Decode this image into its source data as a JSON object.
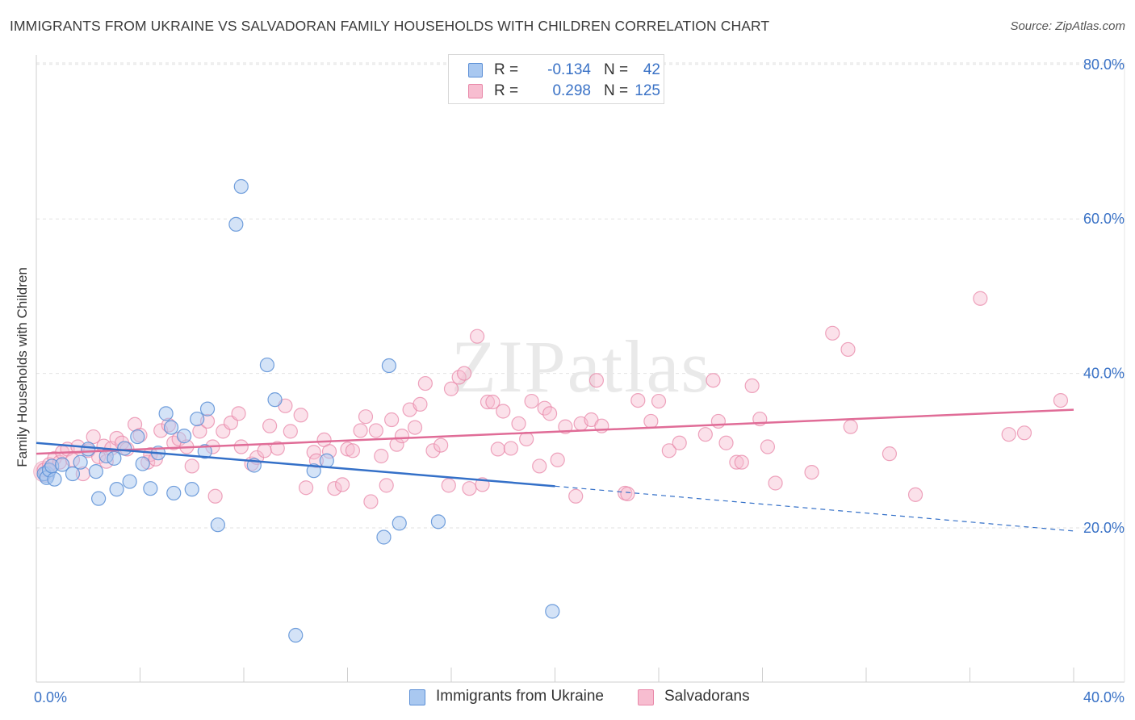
{
  "header": {
    "title": "IMMIGRANTS FROM UKRAINE VS SALVADORAN FAMILY HOUSEHOLDS WITH CHILDREN CORRELATION CHART",
    "source": "Source: ZipAtlas.com"
  },
  "watermark": "ZIPatlas",
  "legend": {
    "series1": {
      "r_label": "R =",
      "r_value": "-0.134",
      "n_label": "N =",
      "n_value": "42"
    },
    "series2": {
      "r_label": "R =",
      "r_value": "0.298",
      "n_label": "N =",
      "n_value": "125"
    }
  },
  "bottom_legend": {
    "series1": "Immigrants from Ukraine",
    "series2": "Salvadorans"
  },
  "colors": {
    "blue_fill": "#a9c8f0",
    "blue_stroke": "#5b8fd6",
    "blue_line": "#3470c8",
    "pink_fill": "#f7bdd0",
    "pink_stroke": "#e887a8",
    "pink_line": "#e06c97",
    "axis_text": "#3a72c6",
    "grid": "#e2e2e2"
  },
  "chart_data": {
    "type": "scatter",
    "title": "IMMIGRANTS FROM UKRAINE VS SALVADORAN FAMILY HOUSEHOLDS WITH CHILDREN CORRELATION CHART",
    "xlabel": "",
    "ylabel": "Family Households with Children",
    "xlim": [
      0,
      40
    ],
    "ylim": [
      0,
      80
    ],
    "x_tick_labels": [
      "0.0%",
      "40.0%"
    ],
    "y_tick_labels": [
      "20.0%",
      "40.0%",
      "60.0%",
      "80.0%"
    ],
    "y_ticks": [
      20,
      40,
      60,
      80
    ],
    "series": [
      {
        "name": "Immigrants from Ukraine",
        "r": -0.134,
        "n": 42,
        "trend": {
          "x_start": 0,
          "y_start": 31.0,
          "x_end": 20,
          "y_end": 25.4,
          "dashed_to_x": 40,
          "dashed_to_y": 19.6
        },
        "points": [
          [
            0.3,
            27.0
          ],
          [
            0.4,
            26.5
          ],
          [
            0.5,
            27.5
          ],
          [
            0.6,
            28.0
          ],
          [
            0.7,
            26.3
          ],
          [
            1.0,
            28.2
          ],
          [
            1.4,
            27.0
          ],
          [
            1.7,
            28.5
          ],
          [
            2.0,
            30.2
          ],
          [
            2.3,
            27.3
          ],
          [
            2.4,
            23.8
          ],
          [
            2.7,
            29.3
          ],
          [
            3.0,
            29.0
          ],
          [
            3.1,
            25.0
          ],
          [
            3.4,
            30.3
          ],
          [
            3.6,
            26.0
          ],
          [
            3.9,
            31.8
          ],
          [
            4.1,
            28.3
          ],
          [
            4.4,
            25.1
          ],
          [
            4.7,
            29.7
          ],
          [
            5.0,
            34.8
          ],
          [
            5.2,
            33.0
          ],
          [
            5.3,
            24.5
          ],
          [
            5.7,
            31.9
          ],
          [
            6.0,
            25.0
          ],
          [
            6.2,
            34.1
          ],
          [
            6.5,
            29.9
          ],
          [
            6.6,
            35.4
          ],
          [
            7.0,
            20.4
          ],
          [
            7.7,
            59.3
          ],
          [
            7.9,
            64.2
          ],
          [
            8.4,
            28.1
          ],
          [
            8.9,
            41.1
          ],
          [
            9.2,
            36.6
          ],
          [
            10.0,
            6.1
          ],
          [
            10.7,
            27.4
          ],
          [
            11.2,
            28.7
          ],
          [
            13.4,
            18.8
          ],
          [
            13.6,
            41.0
          ],
          [
            14.0,
            20.6
          ],
          [
            15.5,
            20.8
          ],
          [
            19.9,
            9.2
          ]
        ]
      },
      {
        "name": "Salvadorans",
        "r": 0.298,
        "n": 125,
        "trend": {
          "x_start": 0,
          "y_start": 29.6,
          "x_end": 40,
          "y_end": 35.3
        },
        "points": [
          [
            0.3,
            27.5
          ],
          [
            0.5,
            28.2
          ],
          [
            0.7,
            29.0
          ],
          [
            0.9,
            28.5
          ],
          [
            1.0,
            29.8
          ],
          [
            1.2,
            30.2
          ],
          [
            1.4,
            28.8
          ],
          [
            1.6,
            30.5
          ],
          [
            1.8,
            27.0
          ],
          [
            2.0,
            30.0
          ],
          [
            2.2,
            31.8
          ],
          [
            2.4,
            29.2
          ],
          [
            2.6,
            30.6
          ],
          [
            2.7,
            28.6
          ],
          [
            2.9,
            30.3
          ],
          [
            3.1,
            31.6
          ],
          [
            3.3,
            31.0
          ],
          [
            3.5,
            30.2
          ],
          [
            3.8,
            33.4
          ],
          [
            4.0,
            32.0
          ],
          [
            4.3,
            28.5
          ],
          [
            4.4,
            29.5
          ],
          [
            4.6,
            28.9
          ],
          [
            4.8,
            32.6
          ],
          [
            5.1,
            33.3
          ],
          [
            5.3,
            31.0
          ],
          [
            5.5,
            31.5
          ],
          [
            5.8,
            30.5
          ],
          [
            6.0,
            28.0
          ],
          [
            6.3,
            32.5
          ],
          [
            6.6,
            33.8
          ],
          [
            6.8,
            30.5
          ],
          [
            6.9,
            24.1
          ],
          [
            7.2,
            32.5
          ],
          [
            7.5,
            33.6
          ],
          [
            7.8,
            34.8
          ],
          [
            7.9,
            30.5
          ],
          [
            8.3,
            28.3
          ],
          [
            8.5,
            29.1
          ],
          [
            8.8,
            30.0
          ],
          [
            9.0,
            33.2
          ],
          [
            9.3,
            30.3
          ],
          [
            9.6,
            35.8
          ],
          [
            9.8,
            32.5
          ],
          [
            10.2,
            34.6
          ],
          [
            10.4,
            25.2
          ],
          [
            10.7,
            29.8
          ],
          [
            10.8,
            28.7
          ],
          [
            11.1,
            31.4
          ],
          [
            11.3,
            29.9
          ],
          [
            11.5,
            25.1
          ],
          [
            11.8,
            25.6
          ],
          [
            12.0,
            30.2
          ],
          [
            12.2,
            30.0
          ],
          [
            12.5,
            32.6
          ],
          [
            12.7,
            34.4
          ],
          [
            12.9,
            23.4
          ],
          [
            13.1,
            32.6
          ],
          [
            13.3,
            29.3
          ],
          [
            13.5,
            25.5
          ],
          [
            13.7,
            34.0
          ],
          [
            13.9,
            30.8
          ],
          [
            14.1,
            31.9
          ],
          [
            14.4,
            35.3
          ],
          [
            14.6,
            33.0
          ],
          [
            14.8,
            36.0
          ],
          [
            15.0,
            38.7
          ],
          [
            15.3,
            30.0
          ],
          [
            15.6,
            30.7
          ],
          [
            15.9,
            25.5
          ],
          [
            16.0,
            38.0
          ],
          [
            16.3,
            39.5
          ],
          [
            16.5,
            40.0
          ],
          [
            16.7,
            25.1
          ],
          [
            17.0,
            44.8
          ],
          [
            17.2,
            25.6
          ],
          [
            17.4,
            36.3
          ],
          [
            17.6,
            36.3
          ],
          [
            17.8,
            30.2
          ],
          [
            18.0,
            35.1
          ],
          [
            18.3,
            30.3
          ],
          [
            18.6,
            33.5
          ],
          [
            18.9,
            31.5
          ],
          [
            19.1,
            36.4
          ],
          [
            19.4,
            28.0
          ],
          [
            19.6,
            35.5
          ],
          [
            19.8,
            34.8
          ],
          [
            20.1,
            28.8
          ],
          [
            20.4,
            33.1
          ],
          [
            20.8,
            24.1
          ],
          [
            21.0,
            33.5
          ],
          [
            21.4,
            34.0
          ],
          [
            21.6,
            39.1
          ],
          [
            21.8,
            33.2
          ],
          [
            22.7,
            24.5
          ],
          [
            22.8,
            24.4
          ],
          [
            23.2,
            36.5
          ],
          [
            23.7,
            33.8
          ],
          [
            24.0,
            36.4
          ],
          [
            24.4,
            30.0
          ],
          [
            24.8,
            31.0
          ],
          [
            25.8,
            32.1
          ],
          [
            26.1,
            39.1
          ],
          [
            26.3,
            33.8
          ],
          [
            26.6,
            31.0
          ],
          [
            27.0,
            28.5
          ],
          [
            27.2,
            28.5
          ],
          [
            27.6,
            38.4
          ],
          [
            27.9,
            34.1
          ],
          [
            28.2,
            30.5
          ],
          [
            28.5,
            25.8
          ],
          [
            29.9,
            27.2
          ],
          [
            30.7,
            45.2
          ],
          [
            31.3,
            43.1
          ],
          [
            31.4,
            33.1
          ],
          [
            32.9,
            29.6
          ],
          [
            33.9,
            24.3
          ],
          [
            36.4,
            49.7
          ],
          [
            37.5,
            32.1
          ],
          [
            38.1,
            32.3
          ],
          [
            39.5,
            36.5
          ]
        ]
      }
    ]
  }
}
